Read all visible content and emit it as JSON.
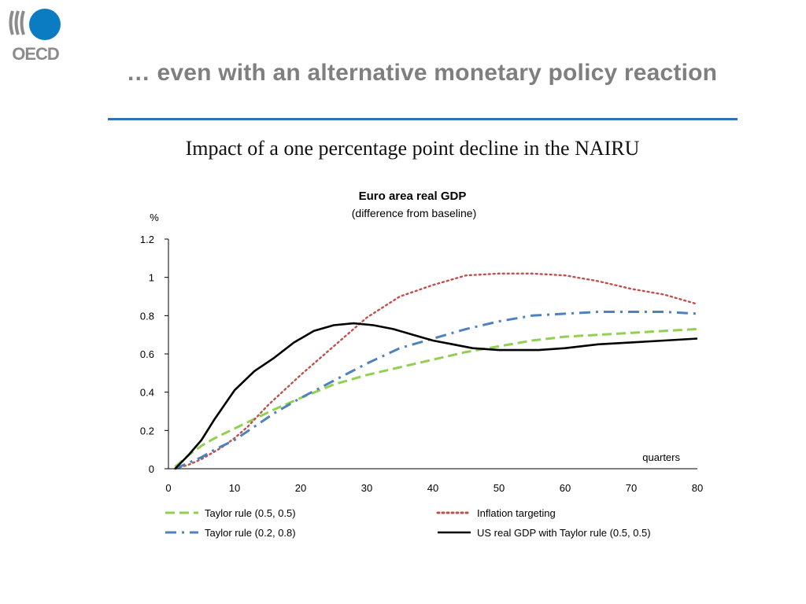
{
  "slide": {
    "logo_text": "OECD",
    "title": "… even with an alternative monetary policy reaction",
    "subtitle": "Impact of a one percentage  point decline in the NAIRU",
    "rule_color": "#2f70b6"
  },
  "chart_data": {
    "type": "line",
    "title": "Euro area real GDP",
    "subtitle": "(difference from baseline)",
    "ylabel": "%",
    "xlabel": "quarters",
    "xlim": [
      0,
      80
    ],
    "ylim": [
      0,
      1.2
    ],
    "x_ticks": [
      0,
      10,
      20,
      30,
      40,
      50,
      60,
      70,
      80
    ],
    "y_ticks": [
      0,
      0.2,
      0.4,
      0.6,
      0.8,
      1,
      1.2
    ],
    "y_tick_labels": [
      "0",
      "0.2",
      "0.4",
      "0.6",
      "0.8",
      "1",
      "1.2"
    ],
    "grid": false,
    "legend_position": "bottom",
    "series": [
      {
        "name": "Taylor rule (0.5, 0.5)",
        "color": "#92d050",
        "style": "dashed",
        "x": [
          1,
          3,
          5,
          7,
          10,
          13,
          16,
          20,
          25,
          30,
          35,
          40,
          45,
          50,
          55,
          60,
          65,
          70,
          75,
          80
        ],
        "y": [
          0.01,
          0.07,
          0.12,
          0.16,
          0.21,
          0.26,
          0.31,
          0.37,
          0.44,
          0.49,
          0.53,
          0.57,
          0.61,
          0.64,
          0.67,
          0.69,
          0.7,
          0.71,
          0.72,
          0.73
        ]
      },
      {
        "name": "Inflation targeting",
        "color": "#c0504d",
        "style": "dotted",
        "x": [
          1,
          3,
          5,
          8,
          10,
          12,
          15,
          20,
          25,
          30,
          35,
          40,
          45,
          50,
          55,
          60,
          65,
          70,
          75,
          80
        ],
        "y": [
          0.0,
          0.02,
          0.05,
          0.11,
          0.16,
          0.22,
          0.33,
          0.49,
          0.64,
          0.79,
          0.9,
          0.96,
          1.01,
          1.02,
          1.02,
          1.01,
          0.98,
          0.94,
          0.91,
          0.86
        ]
      },
      {
        "name": "Taylor rule (0.2, 0.8)",
        "color": "#4f81bd",
        "style": "dash-dot",
        "x": [
          1,
          3,
          5,
          7,
          10,
          13,
          16,
          20,
          25,
          30,
          35,
          40,
          45,
          50,
          55,
          60,
          65,
          70,
          75,
          80
        ],
        "y": [
          0.0,
          0.03,
          0.06,
          0.1,
          0.15,
          0.22,
          0.29,
          0.37,
          0.46,
          0.55,
          0.63,
          0.68,
          0.73,
          0.77,
          0.8,
          0.81,
          0.82,
          0.82,
          0.82,
          0.81
        ]
      },
      {
        "name": "US real GDP with Taylor rule (0.5, 0.5)",
        "color": "#000000",
        "style": "solid",
        "x": [
          1,
          3,
          5,
          7,
          10,
          13,
          16,
          19,
          22,
          25,
          28,
          31,
          34,
          37,
          40,
          43,
          46,
          50,
          53,
          56,
          60,
          65,
          70,
          75,
          80
        ],
        "y": [
          0.0,
          0.07,
          0.15,
          0.26,
          0.41,
          0.51,
          0.58,
          0.66,
          0.72,
          0.75,
          0.76,
          0.75,
          0.73,
          0.7,
          0.67,
          0.65,
          0.63,
          0.62,
          0.62,
          0.62,
          0.63,
          0.65,
          0.66,
          0.67,
          0.68
        ]
      }
    ]
  }
}
